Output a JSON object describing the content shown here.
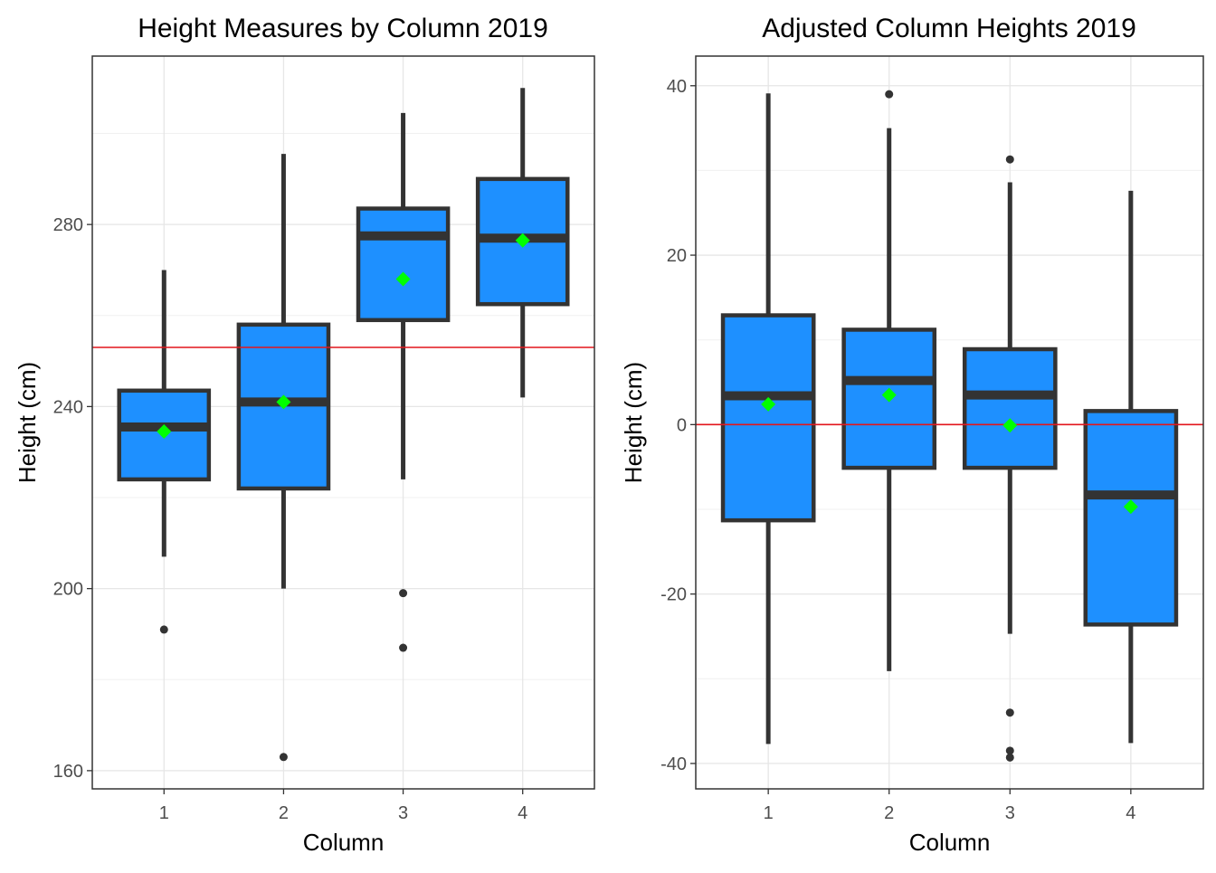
{
  "chart_data": [
    {
      "type": "boxplot",
      "title": "Height Measures by Column 2019",
      "xlabel": "Column",
      "ylabel": "Height (cm)",
      "categories": [
        "1",
        "2",
        "3",
        "4"
      ],
      "y_ticks": [
        160,
        200,
        240,
        280
      ],
      "ylim": [
        156,
        317
      ],
      "reference_line": 253,
      "grid": true,
      "boxes": [
        {
          "category": "1",
          "whisker_low": 207,
          "q1": 224,
          "median": 235.5,
          "q3": 243.5,
          "whisker_high": 270,
          "mean": 234.5,
          "outliers": [
            191
          ]
        },
        {
          "category": "2",
          "whisker_low": 200,
          "q1": 222,
          "median": 241,
          "q3": 258,
          "whisker_high": 295.5,
          "mean": 241,
          "outliers": [
            163
          ]
        },
        {
          "category": "3",
          "whisker_low": 224,
          "q1": 259,
          "median": 277.5,
          "q3": 283.5,
          "whisker_high": 304.5,
          "mean": 268,
          "outliers": [
            199,
            187
          ]
        },
        {
          "category": "4",
          "whisker_low": 242,
          "q1": 262.5,
          "median": 277,
          "q3": 290,
          "whisker_high": 310,
          "mean": 276.5,
          "outliers": []
        }
      ],
      "colors": {
        "box_fill": "#1E90FF",
        "box_line": "#333333",
        "mean_marker": "#00FF00",
        "reference_line": "#E3161C"
      }
    },
    {
      "type": "boxplot",
      "title": "Adjusted Column Heights 2019",
      "xlabel": "Column",
      "ylabel": "Height (cm)",
      "categories": [
        "1",
        "2",
        "3",
        "4"
      ],
      "y_ticks": [
        -40,
        -20,
        0,
        20,
        40
      ],
      "ylim": [
        -43,
        43.5
      ],
      "reference_line": 0,
      "grid": true,
      "boxes": [
        {
          "category": "1",
          "whisker_low": -37.7,
          "q1": -11.3,
          "median": 3.4,
          "q3": 12.9,
          "whisker_high": 39.1,
          "mean": 2.4,
          "outliers": []
        },
        {
          "category": "2",
          "whisker_low": -29.1,
          "q1": -5.1,
          "median": 5.2,
          "q3": 11.2,
          "whisker_high": 35,
          "mean": 3.5,
          "outliers": [
            39
          ]
        },
        {
          "category": "3",
          "whisker_low": -24.7,
          "q1": -5.1,
          "median": 3.5,
          "q3": 8.9,
          "whisker_high": 28.6,
          "mean": -0.1,
          "outliers": [
            31.3,
            -34,
            -38.5,
            -39.3
          ]
        },
        {
          "category": "4",
          "whisker_low": -37.6,
          "q1": -23.6,
          "median": -8.3,
          "q3": 1.6,
          "whisker_high": 27.6,
          "mean": -9.7,
          "outliers": []
        }
      ],
      "colors": {
        "box_fill": "#1E90FF",
        "box_line": "#333333",
        "mean_marker": "#00FF00",
        "reference_line": "#E3161C"
      }
    }
  ]
}
